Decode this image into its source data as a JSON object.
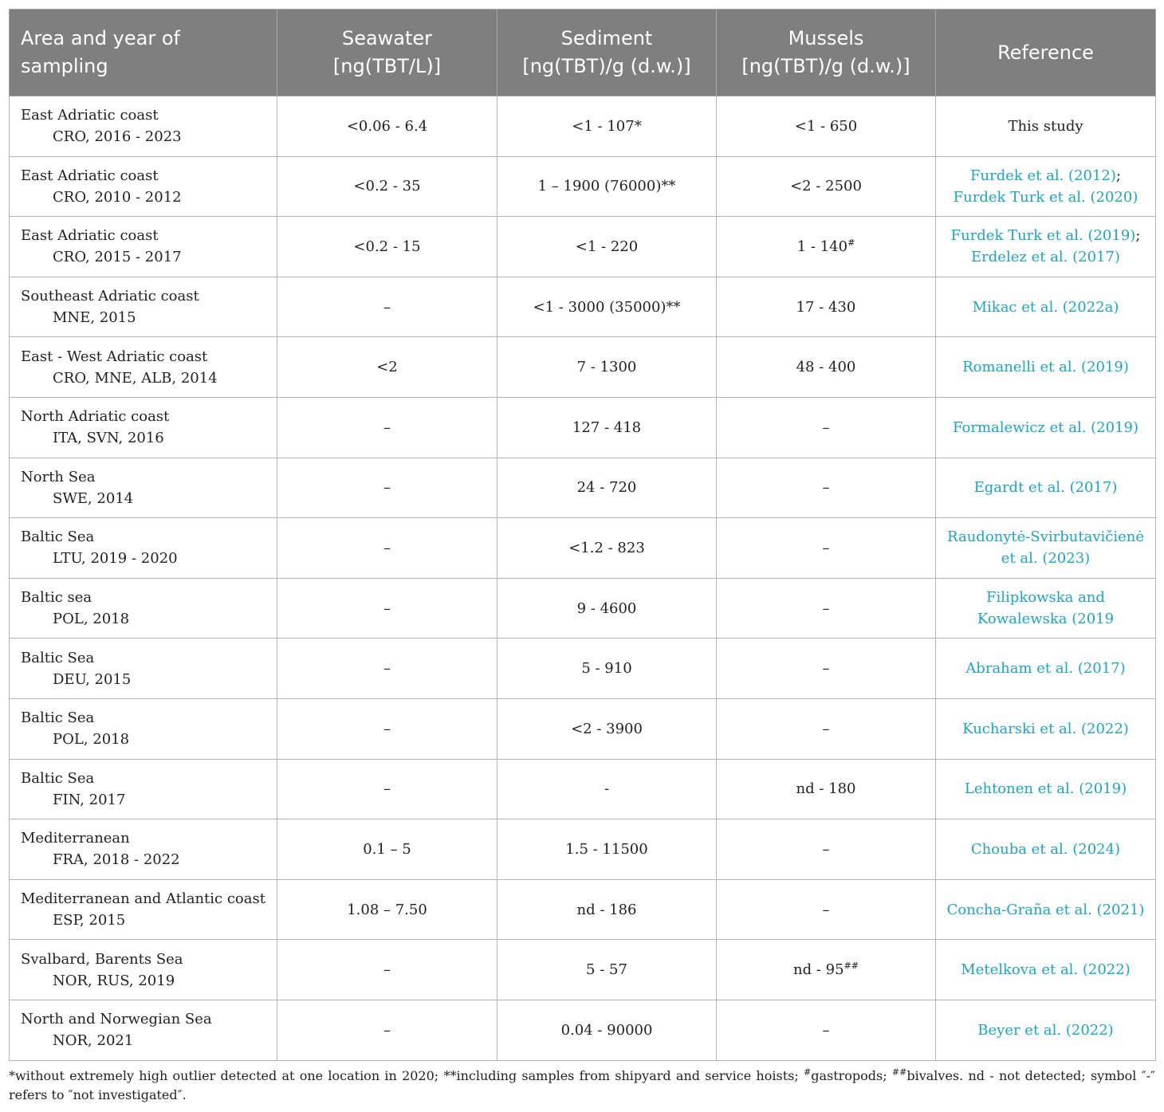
{
  "header": {
    "area": "Area and year of sampling",
    "seawater": "Seawater",
    "seawater_unit": "[ng(TBT/L)]",
    "sediment": "Sediment",
    "sediment_unit": "[ng(TBT)/g (d.w.)]",
    "mussels": "Mussels",
    "mussels_unit": "[ng(TBT)/g (d.w.)]",
    "reference": "Reference"
  },
  "rows": [
    {
      "area": "East Adriatic coast",
      "country": "CRO, 2016 - 2023",
      "seawater": "<0.06 - 6.4",
      "sediment": "<1 - 107*",
      "mussels": "<1 - 650",
      "mussels_sup": "",
      "ref1": "This study",
      "ref_sep": "",
      "ref2": ""
    },
    {
      "area": "East Adriatic coast",
      "country": "CRO, 2010 - 2012",
      "seawater": "<0.2 - 35",
      "sediment": "1 – 1900 (76000)**",
      "mussels": "<2 - 2500",
      "mussels_sup": "",
      "ref1": "Furdek et al. (2012)",
      "ref_sep": "; ",
      "ref2": "Furdek Turk et al. (2020)"
    },
    {
      "area": "East Adriatic coast",
      "country": "CRO, 2015 - 2017",
      "seawater": "<0.2 - 15",
      "sediment": "<1 - 220",
      "mussels": "1 - 140",
      "mussels_sup": "#",
      "ref1": "Furdek Turk et al. (2019)",
      "ref_sep": "; ",
      "ref2": "Erdelez et al. (2017)"
    },
    {
      "area": "Southeast Adriatic coast",
      "country": "MNE, 2015",
      "seawater": "–",
      "sediment": "<1 - 3000 (35000)**",
      "mussels": "17 - 430",
      "mussels_sup": "",
      "ref1": "Mikac et al. (2022a)",
      "ref_sep": "",
      "ref2": ""
    },
    {
      "area": "East - West Adriatic coast",
      "country": "CRO, MNE, ALB, 2014",
      "seawater": "<2",
      "sediment": "7 - 1300",
      "mussels": "48 - 400",
      "mussels_sup": "",
      "ref1": "Romanelli et al. (2019)",
      "ref_sep": "",
      "ref2": ""
    },
    {
      "area": "North Adriatic coast",
      "country": "ITA, SVN, 2016",
      "seawater": "–",
      "sediment": "127 - 418",
      "mussels": "–",
      "mussels_sup": "",
      "ref1": "Formalewicz et al. (2019)",
      "ref_sep": "",
      "ref2": ""
    },
    {
      "area": "North Sea",
      "country": "SWE, 2014",
      "seawater": "–",
      "sediment": "24 - 720",
      "mussels": "–",
      "mussels_sup": "",
      "ref1": "Egardt et al. (2017)",
      "ref_sep": "",
      "ref2": ""
    },
    {
      "area": "Baltic Sea",
      "country": "LTU, 2019 - 2020",
      "seawater": "–",
      "sediment": "<1.2 - 823",
      "mussels": "–",
      "mussels_sup": "",
      "ref1": "Raudonytė-Svirbutavičienė et al. (2023)",
      "ref_sep": "",
      "ref2": ""
    },
    {
      "area": "Baltic sea",
      "country": "POL, 2018",
      "seawater": "–",
      "sediment": "9 - 4600",
      "mussels": "–",
      "mussels_sup": "",
      "ref1": "Filipkowska and Kowalewska (2019",
      "ref_sep": "",
      "ref2": ""
    },
    {
      "area": "Baltic Sea",
      "country": "DEU, 2015",
      "seawater": "–",
      "sediment": "5 - 910",
      "mussels": "–",
      "mussels_sup": "",
      "ref1": "Abraham et al. (2017)",
      "ref_sep": "",
      "ref2": ""
    },
    {
      "area": "Baltic Sea",
      "country": "POL, 2018",
      "seawater": "–",
      "sediment": "<2 - 3900",
      "mussels": "–",
      "mussels_sup": "",
      "ref1": "Kucharski et al. (2022)",
      "ref_sep": "",
      "ref2": ""
    },
    {
      "area": "Baltic Sea",
      "country": "FIN, 2017",
      "seawater": "–",
      "sediment": "-",
      "mussels": "nd - 180",
      "mussels_sup": "",
      "ref1": "Lehtonen et al. (2019)",
      "ref_sep": "",
      "ref2": ""
    },
    {
      "area": "Mediterranean",
      "country": "FRA, 2018 - 2022",
      "seawater": "0.1 – 5",
      "sediment": "1.5 - 11500",
      "mussels": "–",
      "mussels_sup": "",
      "ref1": "Chouba et al. (2024)",
      "ref_sep": "",
      "ref2": ""
    },
    {
      "area": "Mediterranean and Atlantic coast",
      "country": "ESP, 2015",
      "seawater": "1.08 – 7.50",
      "sediment": "nd - 186",
      "mussels": "–",
      "mussels_sup": "",
      "ref1": "Concha-Graña et al. (2021)",
      "ref_sep": "",
      "ref2": ""
    },
    {
      "area": "Svalbard, Barents Sea",
      "country": "NOR, RUS, 2019",
      "seawater": "–",
      "sediment": "5 - 57",
      "mussels": "nd - 95",
      "mussels_sup": "##",
      "ref1": "Metelkova et al. (2022)",
      "ref_sep": "",
      "ref2": ""
    },
    {
      "area": "North and Norwegian Sea",
      "country": "NOR, 2021",
      "seawater": "–",
      "sediment": "0.04 - 90000",
      "mussels": "–",
      "mussels_sup": "",
      "ref1": "Beyer et al. (2022)",
      "ref_sep": "",
      "ref2": ""
    }
  ],
  "footnote": {
    "f1": "*without extremely high outlier detected at one location in 2020; **including samples from shipyard and service hoists; ",
    "f2_sup": "#",
    "f2": "gastropods; ",
    "f3_sup": "##",
    "f3": "bivalves. nd - not detected; symbol ″-″ refers to ″not investigated″."
  }
}
